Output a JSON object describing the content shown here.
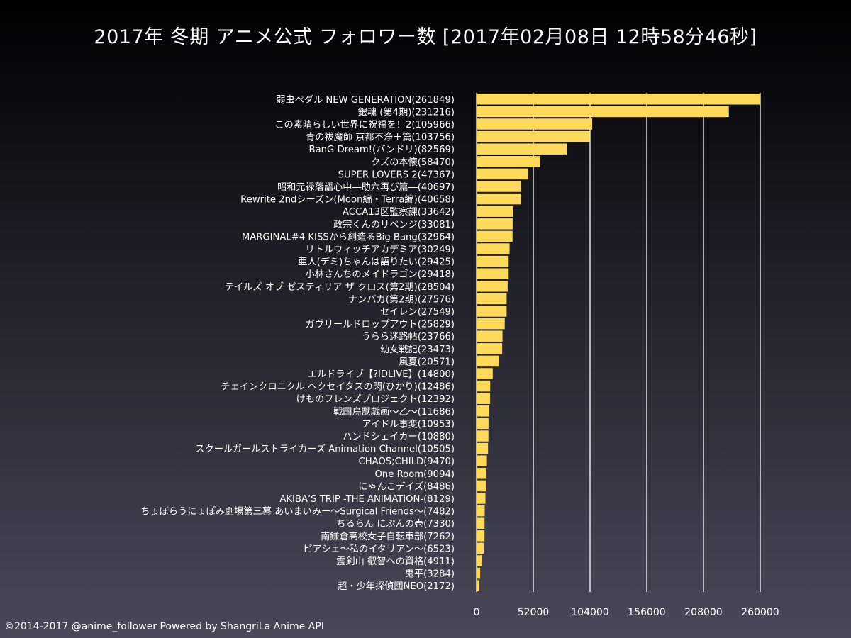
{
  "title": "2017年 冬期 アニメ公式 フォロワー数 [2017年02月08日 12時58分46秒]",
  "footer": "©2014-2017 @anime_follower Powered by ShangriLa Anime API",
  "colors": {
    "bar": "#ffd95a",
    "grid": "#ffffff",
    "text": "#ffffff"
  },
  "chart_data": {
    "type": "bar",
    "orientation": "horizontal",
    "title": "2017年 冬期 アニメ公式 フォロワー数 [2017年02月08日 12時58分46秒]",
    "xlim": [
      0,
      260000
    ],
    "xticks": [
      0,
      52000,
      104000,
      156000,
      208000,
      260000
    ],
    "grid": true,
    "categories": [
      "弱虫ペダル NEW GENERATION(261849)",
      "銀魂 (第4期)(231216)",
      "この素晴らしい世界に祝福を！2(105966)",
      "青の祓魔師 京都不浄王篇(103756)",
      "BanG Dream!(バンドリ)(82569)",
      "クズの本懐(58470)",
      "SUPER LOVERS 2(47367)",
      "昭和元禄落語心中―助六再び篇―(40697)",
      "Rewrite 2ndシーズン(Moon編・Terra編)(40658)",
      "ACCA13区監察課(33642)",
      "政宗くんのリベンジ(33081)",
      "MARGINAL#4 KISSから創造るBig Bang(32964)",
      "リトルウィッチアカデミア(30249)",
      "亜人(デミ)ちゃんは語りたい(29425)",
      "小林さんちのメイドラゴン(29418)",
      "テイルズ オブ ゼスティリア ザ クロス(第2期)(28504)",
      "ナンバカ(第2期)(27576)",
      "セイレン(27549)",
      "ガヴリールドロップアウト(25829)",
      "うらら迷路帖(23766)",
      "幼女戦記(23473)",
      "風夏(20571)",
      "エルドライブ【?lDLIVE】(14800)",
      "チェインクロニクル ヘクセイタスの閃(ひかり)(12486)",
      "けものフレンズプロジェクト(12392)",
      "戦国鳥獣戯画～乙～(11686)",
      "アイドル事変(10953)",
      "ハンドシェイカー(10880)",
      "スクールガールストライカーズ Animation Channel(10505)",
      "CHAOS;CHILD(9470)",
      "One Room(9094)",
      "にゃんこデイズ(8486)",
      "AKIBA’S TRIP -THE ANIMATION-(8129)",
      "ちょぼらうにょぽみ劇場第三幕 あいまいみー～Surgical Friends～(7482)",
      "ちるらん にぶんの壱(7330)",
      "南鎌倉高校女子自転車部(7262)",
      "ピアシェ～私のイタリアン～(6523)",
      "霊剣山 叡智への資格(4911)",
      "鬼平(3284)",
      "超・少年探偵団NEO(2172)"
    ],
    "values": [
      261849,
      231216,
      105966,
      103756,
      82569,
      58470,
      47367,
      40697,
      40658,
      33642,
      33081,
      32964,
      30249,
      29425,
      29418,
      28504,
      27576,
      27549,
      25829,
      23766,
      23473,
      20571,
      14800,
      12486,
      12392,
      11686,
      10953,
      10880,
      10505,
      9470,
      9094,
      8486,
      8129,
      7482,
      7330,
      7262,
      6523,
      4911,
      3284,
      2172
    ]
  }
}
